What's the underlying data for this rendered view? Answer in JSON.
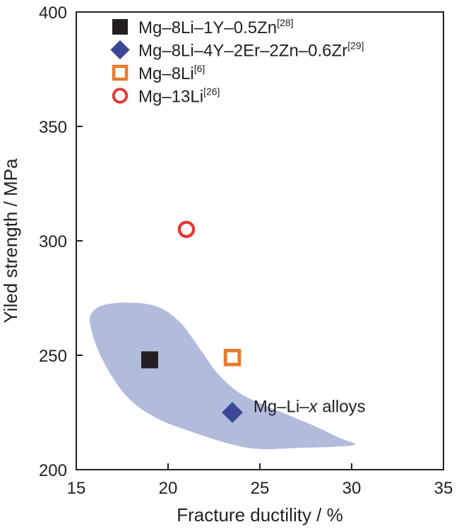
{
  "chart_data": {
    "type": "scatter",
    "xlabel": "Fracture ductility / %",
    "ylabel": "Yiled strength / MPa",
    "xlim": [
      15,
      35
    ],
    "ylim": [
      200,
      400
    ],
    "xticks": [
      15,
      20,
      25,
      30,
      35
    ],
    "yticks": [
      200,
      250,
      300,
      350,
      400
    ],
    "grid": false,
    "legend_position": "top-left",
    "series": [
      {
        "name": "Mg–8Li–1Y–0.5Zn",
        "ref": "[28]",
        "marker": "filled-square",
        "color": "#231f20",
        "x": 19.0,
        "y": 248
      },
      {
        "name": "Mg–8Li–4Y–2Er–2Zn–0.6Zr",
        "ref": "[29]",
        "marker": "filled-diamond",
        "color": "#3d4796",
        "x": 23.5,
        "y": 225
      },
      {
        "name": "Mg–8Li",
        "ref": "[6]",
        "marker": "open-square",
        "color": "#e8792b",
        "x": 23.5,
        "y": 249
      },
      {
        "name": "Mg–13Li",
        "ref": "[26]",
        "marker": "open-circle",
        "color": "#e03a35",
        "x": 21.0,
        "y": 305
      }
    ],
    "region": {
      "label_prefix": "Mg–Li–",
      "label_var": "x",
      "label_suffix": " alloys",
      "color": "#b1bbdb",
      "label_pos": [
        27.7,
        228
      ],
      "outline": [
        [
          15.8,
          268
        ],
        [
          16.5,
          272
        ],
        [
          18.0,
          273
        ],
        [
          19.5,
          271
        ],
        [
          20.7,
          264
        ],
        [
          21.8,
          252
        ],
        [
          22.7,
          242
        ],
        [
          23.8,
          234
        ],
        [
          25.0,
          229
        ],
        [
          26.5,
          224
        ],
        [
          28.0,
          219
        ],
        [
          29.3,
          214
        ],
        [
          30.2,
          211
        ],
        [
          29.0,
          210
        ],
        [
          27.0,
          209.5
        ],
        [
          25.0,
          209
        ],
        [
          23.5,
          211
        ],
        [
          21.5,
          216
        ],
        [
          19.5,
          222
        ],
        [
          18.0,
          230
        ],
        [
          17.0,
          240
        ],
        [
          16.2,
          252
        ],
        [
          15.8,
          262
        ]
      ]
    }
  }
}
